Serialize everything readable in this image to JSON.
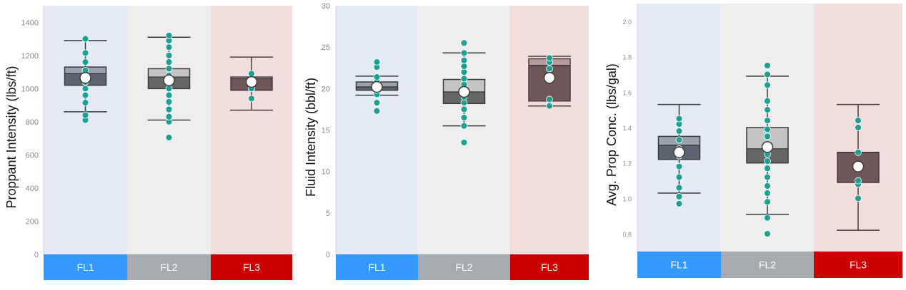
{
  "colors": {
    "fl1": "#3399ff",
    "fl2": "#a6abb0",
    "fl3": "#cc0000",
    "fl1_bg": "#e3ebf6",
    "fl2_bg": "#eeeeee",
    "fl3_bg": "#f3dede",
    "dot": "#1f9e94",
    "whisker": "#3a3a3a"
  },
  "chart_data": [
    {
      "type": "box",
      "ylabel": "Proppant Intensity (lbs/ft)",
      "ylim": [
        0,
        1500
      ],
      "yticks": [
        0,
        200,
        400,
        600,
        800,
        1000,
        1200,
        1400
      ],
      "categories": [
        "FL1",
        "FL2",
        "FL3"
      ],
      "boxes": [
        {
          "category": "FL1",
          "min": 860,
          "q1": 1020,
          "median": 1090,
          "q3": 1130,
          "max": 1290,
          "mean": 1065,
          "points": [
            810,
            840,
            915,
            960,
            1000,
            1040,
            1070,
            1110,
            1160,
            1215,
            1300
          ]
        },
        {
          "category": "FL2",
          "min": 810,
          "q1": 1000,
          "median": 1070,
          "q3": 1120,
          "max": 1310,
          "mean": 1050,
          "points": [
            705,
            800,
            830,
            875,
            920,
            960,
            1000,
            1040,
            1080,
            1120,
            1160,
            1200,
            1250,
            1290,
            1320
          ]
        },
        {
          "category": "FL3",
          "min": 870,
          "q1": 990,
          "median": 1060,
          "q3": 1070,
          "max": 1190,
          "mean": 1040,
          "points": [
            940,
            1000,
            1090
          ]
        }
      ]
    },
    {
      "type": "box",
      "ylabel": "Fluid Intensity (bbl/ft)",
      "ylim": [
        0,
        30
      ],
      "yticks": [
        0,
        5,
        10,
        15,
        20,
        25,
        30
      ],
      "categories": [
        "FL1",
        "FL2",
        "FL3"
      ],
      "boxes": [
        {
          "category": "FL1",
          "min": 19.2,
          "q1": 19.8,
          "median": 20.2,
          "q3": 20.8,
          "max": 21.5,
          "mean": 20.2,
          "points": [
            17.3,
            18.3,
            19.3,
            19.8,
            20.3,
            20.8,
            21.4,
            22.6,
            23.2
          ]
        },
        {
          "category": "FL2",
          "min": 15.5,
          "q1": 18.2,
          "median": 19.6,
          "q3": 21.1,
          "max": 24.3,
          "mean": 19.6,
          "points": [
            13.5,
            15.5,
            16.5,
            17.5,
            18.3,
            19.0,
            19.8,
            20.5,
            21.2,
            22.0,
            22.7,
            23.4,
            24.3,
            25.5
          ]
        },
        {
          "category": "FL3",
          "min": 17.9,
          "q1": 18.5,
          "median": 22.8,
          "q3": 23.6,
          "max": 23.9,
          "mean": 21.3,
          "points": [
            17.9,
            18.7,
            22.4,
            23.2,
            23.7
          ]
        }
      ]
    },
    {
      "type": "box",
      "ylabel": "Avg. Prop Conc. (lbs/gal)",
      "ylim": [
        0.7,
        2.1
      ],
      "yticks": [
        0.8,
        1.0,
        1.2,
        1.4,
        1.6,
        1.8,
        2.0
      ],
      "yticklabels": [
        "0.8",
        "1.0",
        "1.2",
        "1.4",
        "1.6",
        "1.8",
        "2.0"
      ],
      "categories": [
        "FL1",
        "FL2",
        "FL3"
      ],
      "boxes": [
        {
          "category": "FL1",
          "min": 1.03,
          "q1": 1.22,
          "median": 1.3,
          "q3": 1.35,
          "max": 1.53,
          "mean": 1.26,
          "points": [
            0.97,
            1.01,
            1.06,
            1.12,
            1.18,
            1.24,
            1.28,
            1.33,
            1.38,
            1.42,
            1.45
          ]
        },
        {
          "category": "FL2",
          "min": 0.91,
          "q1": 1.2,
          "median": 1.28,
          "q3": 1.4,
          "max": 1.69,
          "mean": 1.29,
          "points": [
            0.8,
            0.89,
            0.98,
            1.03,
            1.07,
            1.12,
            1.17,
            1.21,
            1.25,
            1.3,
            1.35,
            1.39,
            1.44,
            1.5,
            1.55,
            1.64,
            1.7,
            1.75
          ]
        },
        {
          "category": "FL3",
          "min": 0.82,
          "q1": 1.09,
          "median": 1.26,
          "q3": 1.26,
          "max": 1.53,
          "mean": 1.18,
          "points": [
            1.0,
            1.08,
            1.1,
            1.26,
            1.4,
            1.44
          ]
        }
      ]
    }
  ]
}
